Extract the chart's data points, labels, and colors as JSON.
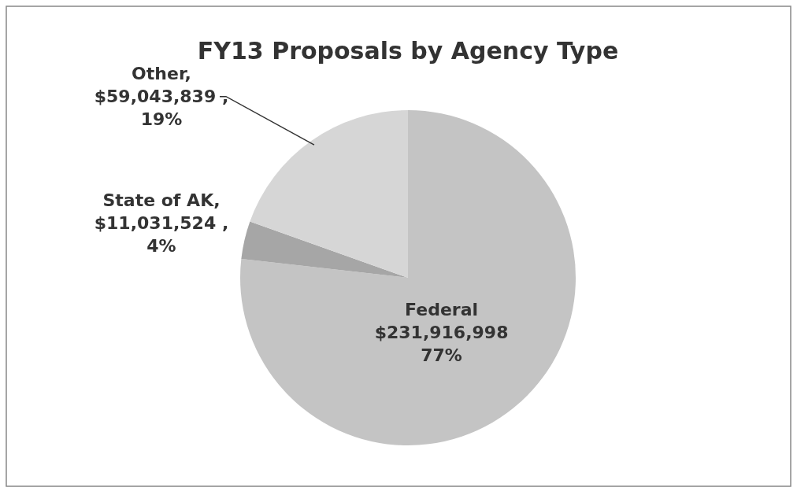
{
  "chart_data": {
    "type": "pie",
    "title": "FY13 Proposals by Agency Type",
    "categories": [
      "Federal",
      "State of AK",
      "Other"
    ],
    "values": [
      231916998,
      11031524,
      59043839
    ],
    "colors": [
      "#c4c4c4",
      "#a6a6a6",
      "#d6d6d6"
    ],
    "value_labels": [
      "\n$231,916,998\n77%",
      ",\n$11,031,524 ,\n4%",
      ",\n$59,043,839 ,\n19%"
    ]
  }
}
